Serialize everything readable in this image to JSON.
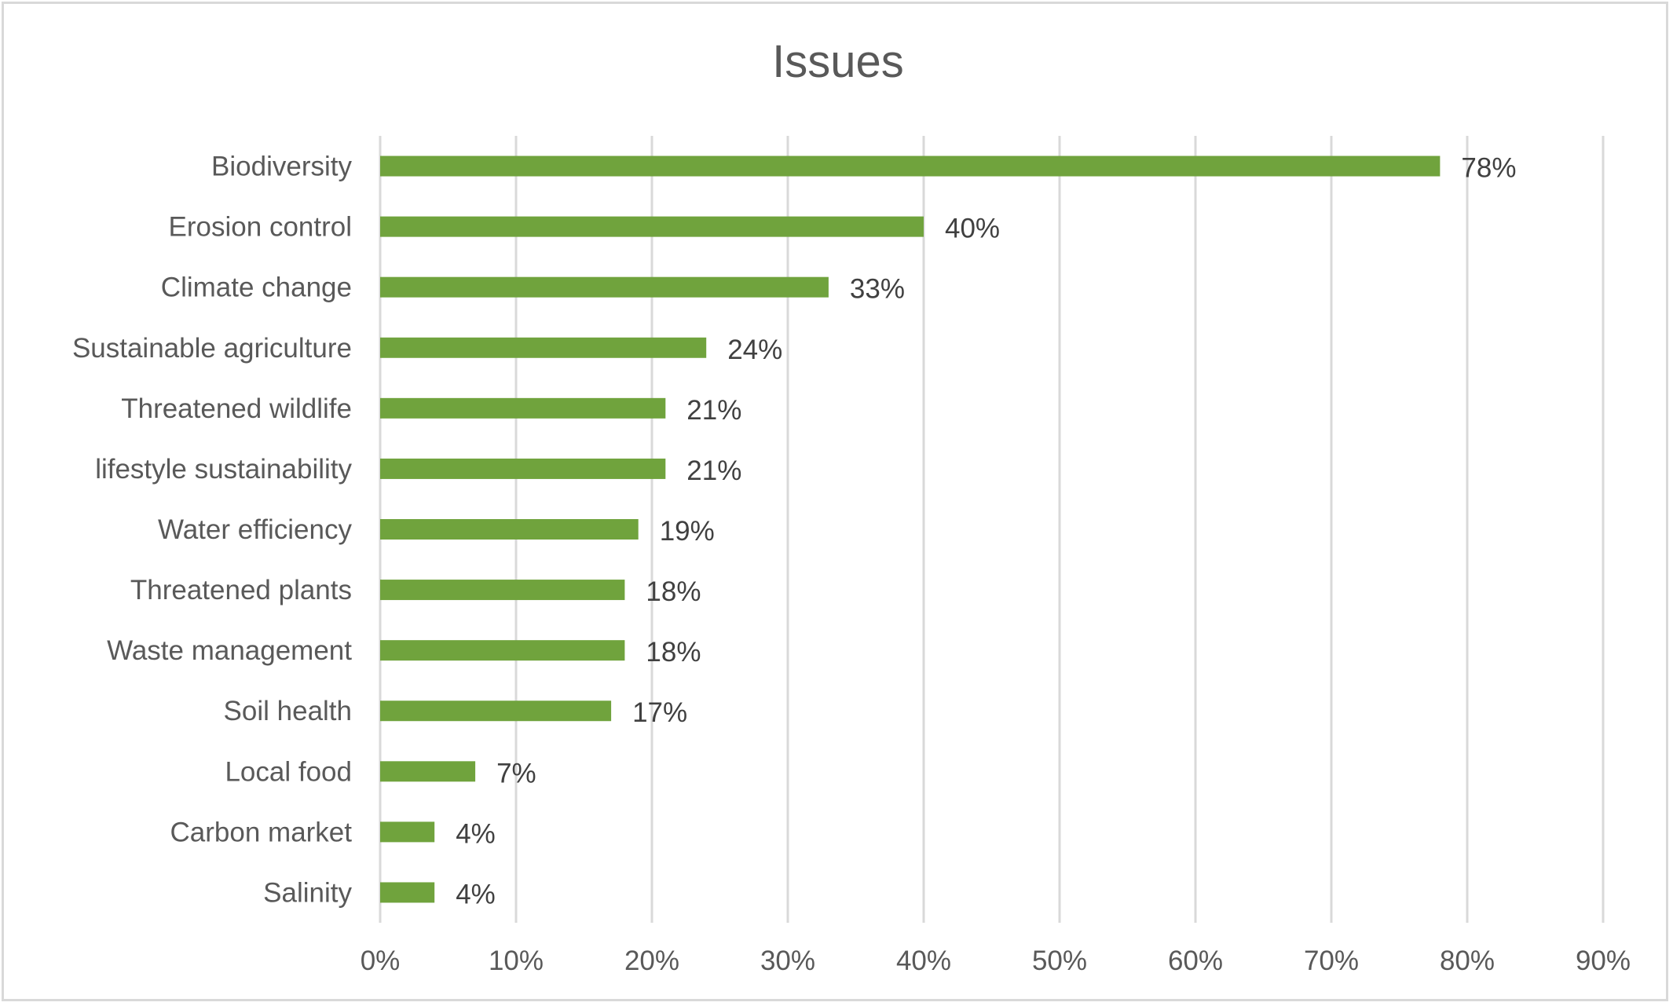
{
  "chart_data": {
    "type": "bar",
    "orientation": "horizontal",
    "title": "Issues",
    "xlabel": "",
    "ylabel": "",
    "categories": [
      "Biodiversity",
      "Erosion control",
      "Climate change",
      "Sustainable agriculture",
      "Threatened wildlife",
      "lifestyle sustainability",
      "Water efficiency",
      "Threatened plants",
      "Waste management",
      "Soil health",
      "Local food",
      "Carbon market",
      "Salinity"
    ],
    "values": [
      78,
      40,
      33,
      24,
      21,
      21,
      19,
      18,
      18,
      17,
      7,
      4,
      4
    ],
    "value_labels": [
      "78%",
      "40%",
      "33%",
      "24%",
      "21%",
      "21%",
      "19%",
      "18%",
      "18%",
      "17%",
      "7%",
      "4%",
      "4%"
    ],
    "xlim": [
      0,
      90
    ],
    "xticks": [
      0,
      10,
      20,
      30,
      40,
      50,
      60,
      70,
      80,
      90
    ],
    "xtick_labels": [
      "0%",
      "10%",
      "20%",
      "30%",
      "40%",
      "50%",
      "60%",
      "70%",
      "80%",
      "90%"
    ],
    "grid": "vertical",
    "legend": "none",
    "bar_color": "#70a33d"
  }
}
